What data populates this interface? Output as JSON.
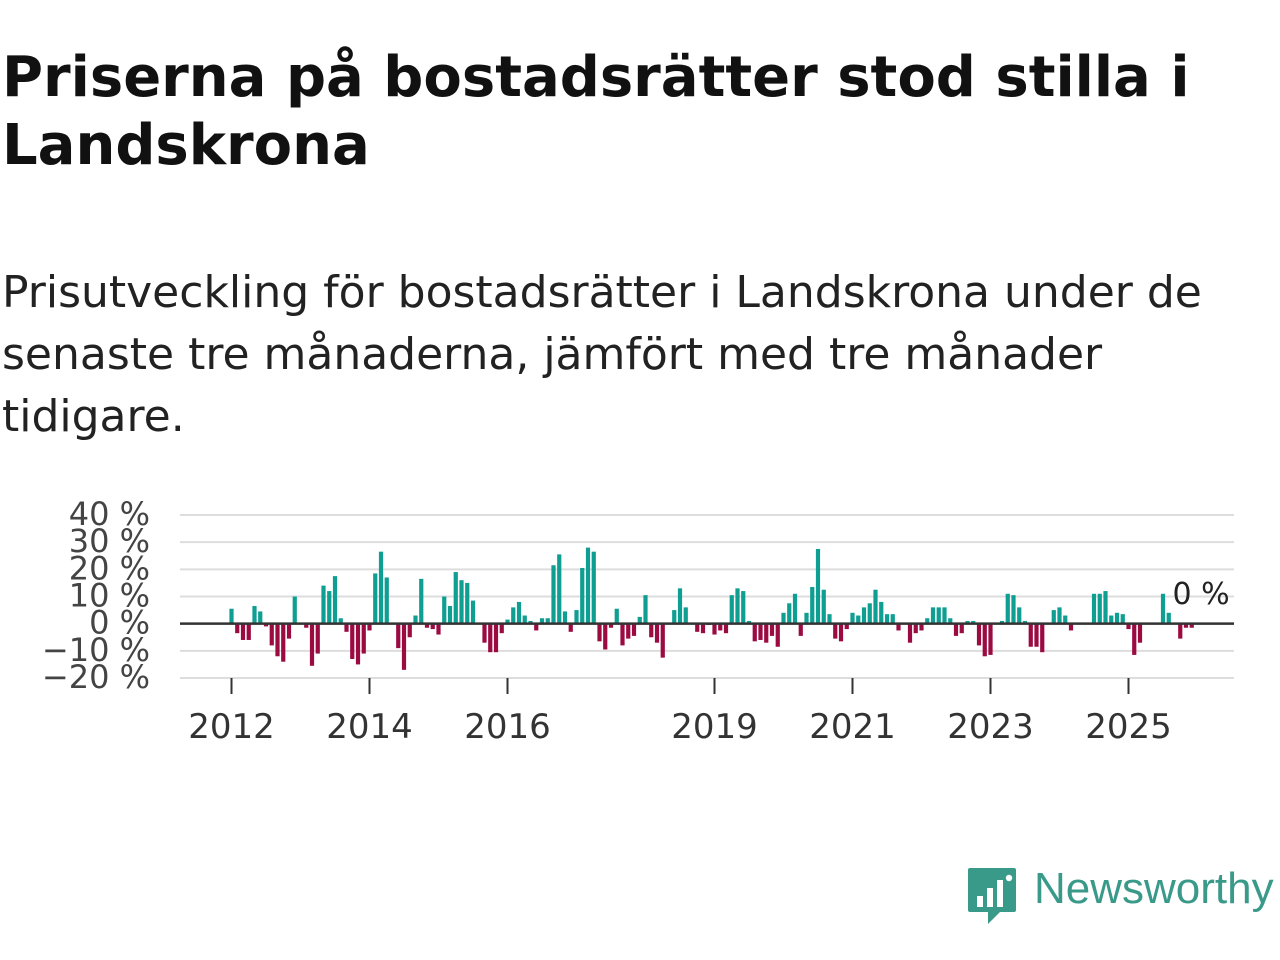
{
  "title": "Priserna på bostadsrätter stod stilla i Landskrona",
  "subtitle": "Prisutveckling för bostadsrätter i Landskrona under de senaste tre månaderna, jämfört med tre månader tidigare.",
  "brand": {
    "name": "Newsworthy",
    "color": "#3a9a8a"
  },
  "colors": {
    "positive": "#0f9e92",
    "negative": "#9b0b42",
    "grid": "#dddddd",
    "zero_line": "#333333",
    "tick_text": "#444444"
  },
  "chart_data": {
    "type": "bar",
    "title": "",
    "xlabel": "",
    "ylabel": "",
    "ylim": [
      -20,
      40
    ],
    "y_ticks": [
      {
        "value": 40,
        "label": "40 %"
      },
      {
        "value": 30,
        "label": "30 %"
      },
      {
        "value": 20,
        "label": "20 %"
      },
      {
        "value": 10,
        "label": "10 %"
      },
      {
        "value": 0,
        "label": "0 %"
      },
      {
        "value": -10,
        "label": "−10 %"
      },
      {
        "value": -20,
        "label": "−20 %"
      }
    ],
    "x_start": "2012-01",
    "x_ticks": [
      {
        "date": "2012-01",
        "label": "2012"
      },
      {
        "date": "2014-01",
        "label": "2014"
      },
      {
        "date": "2016-01",
        "label": "2016"
      },
      {
        "date": "2019-01",
        "label": "2019"
      },
      {
        "date": "2021-01",
        "label": "2021"
      },
      {
        "date": "2023-01",
        "label": "2023"
      },
      {
        "date": "2025-01",
        "label": "2025"
      }
    ],
    "last_value_label": "0 %",
    "values": [
      5.5,
      -3.5,
      -6,
      -6,
      6.5,
      4.5,
      -1,
      -8,
      -12,
      -14,
      -5.5,
      10,
      0,
      -1.5,
      -15.5,
      -11,
      14,
      12,
      17.5,
      2,
      -3,
      -13,
      -15,
      -11,
      -2.5,
      18.5,
      26.5,
      17,
      0,
      -9,
      -17,
      -5,
      3,
      16.5,
      -1.5,
      -2,
      -4,
      10,
      6.5,
      19,
      16,
      15,
      8.5,
      0,
      -7,
      -10.5,
      -10.5,
      -3.5,
      1.5,
      6,
      8,
      3,
      1,
      -2.5,
      2,
      2,
      21.5,
      25.5,
      4.5,
      -3,
      5,
      20.5,
      28,
      26.5,
      -6.5,
      -9.5,
      -1.5,
      5.5,
      -8,
      -5.5,
      -4.5,
      2.5,
      10.5,
      -5,
      -7,
      -12.5,
      0,
      5,
      13,
      6,
      0,
      -3,
      -3.5,
      -0.5,
      -4,
      -2.5,
      -3.5,
      10.5,
      13,
      12,
      1,
      -6.5,
      -6,
      -7,
      -4.5,
      -8.5,
      4,
      7.5,
      11,
      -4.5,
      4,
      13.5,
      27.5,
      12.5,
      3.5,
      -5.5,
      -6.5,
      -2,
      4,
      3,
      6,
      7.5,
      12.5,
      8,
      3.5,
      3.5,
      -2.5,
      0,
      -7,
      -3.5,
      -2.5,
      2,
      6,
      6,
      6,
      2,
      -4.5,
      -3.5,
      1,
      1,
      -8,
      -12,
      -11.5,
      0,
      1,
      11,
      10.5,
      6,
      1,
      -8.5,
      -8.5,
      -10.5,
      0,
      5,
      6,
      3,
      -2.5,
      0,
      0,
      0,
      11,
      11,
      12,
      3,
      4,
      3.5,
      -2,
      -11.5,
      -7,
      0,
      0,
      0,
      11,
      4,
      0,
      -5.5,
      -1.5,
      -1.5,
      0
    ]
  }
}
